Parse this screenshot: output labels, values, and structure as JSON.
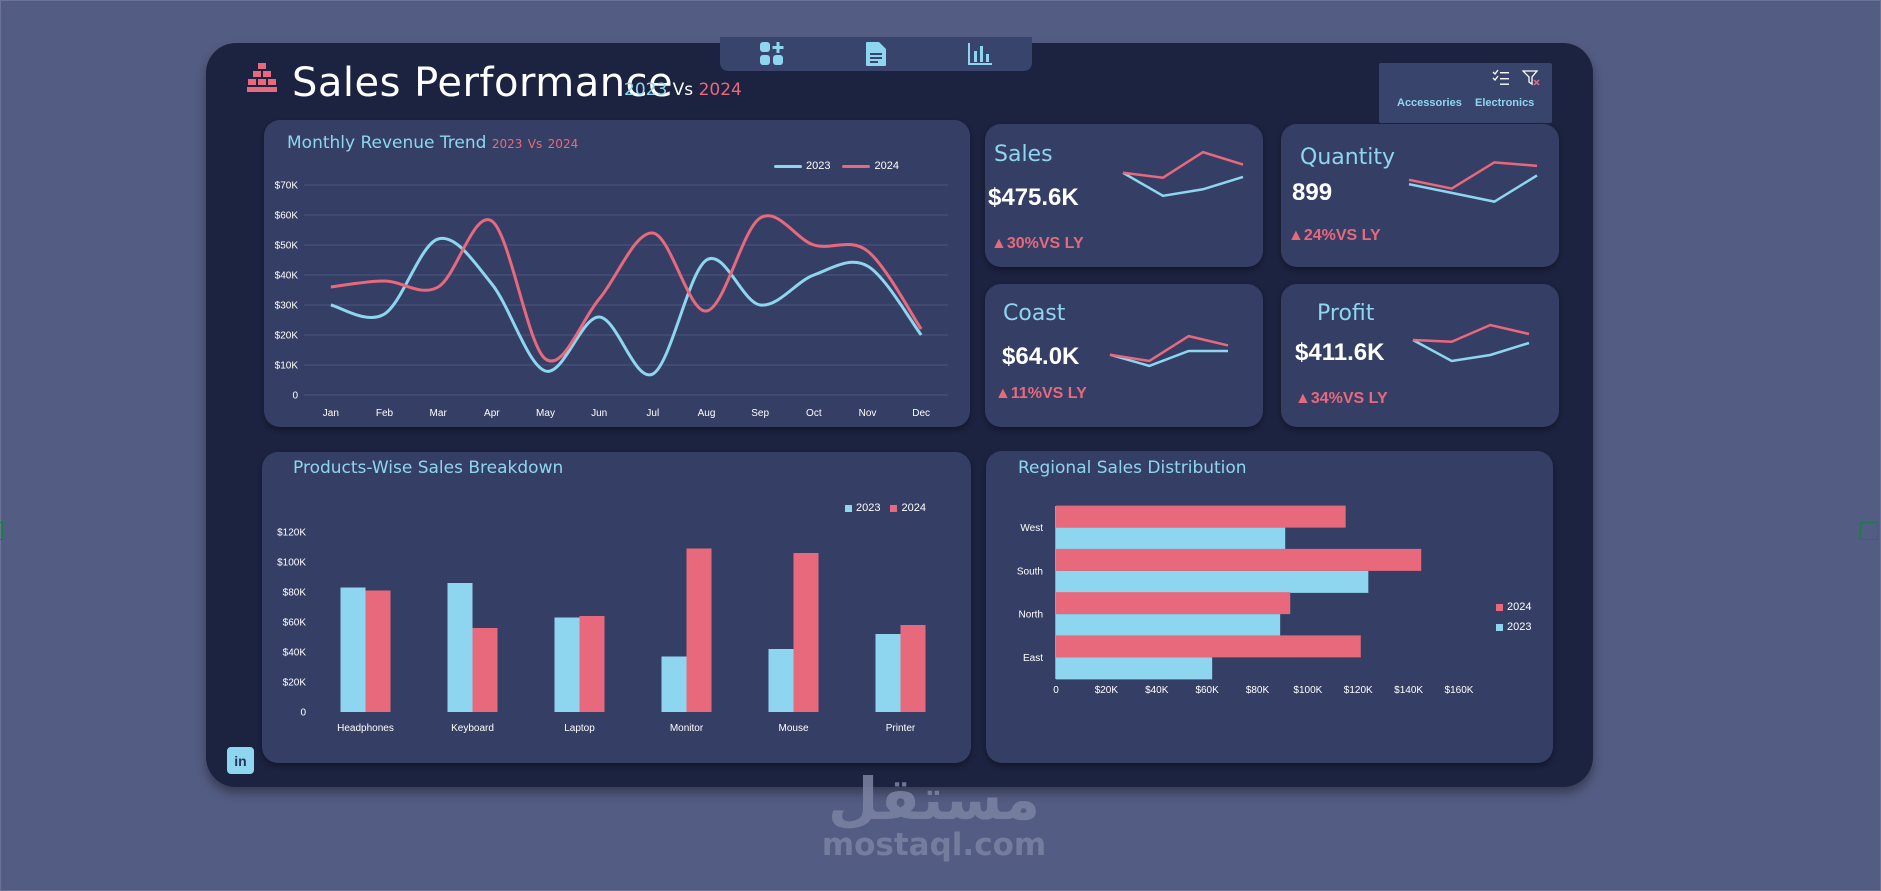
{
  "header": {
    "title": "Sales Performance",
    "subtitle_year_a": "2023",
    "subtitle_vs": "Vs",
    "subtitle_year_b": "2024"
  },
  "nav": {
    "icons": [
      "dashboard-add-icon",
      "document-icon",
      "bar-chart-icon"
    ]
  },
  "slicer": {
    "icons": [
      "multi-select-icon",
      "clear-filter-icon"
    ],
    "items": [
      "Accessories",
      "Electronics"
    ]
  },
  "colors": {
    "y2023": "#8ed6f0",
    "y2024": "#e8697c",
    "card": "#353f65",
    "panel": "#1c2340"
  },
  "revenue_card": {
    "title": "Monthly Revenue Trend",
    "sub_a": "2023",
    "sub_vs": "Vs",
    "sub_b": "2024"
  },
  "products_card": {
    "title": "Products-Wise Sales Breakdown"
  },
  "regional_card": {
    "title": "Regional Sales Distribution"
  },
  "kpis": [
    {
      "label": "Sales",
      "value": "$475.6K",
      "change": "▲30%VS LY",
      "spark_2023": [
        5,
        2.2,
        3,
        4.5
      ],
      "spark_2024": [
        5,
        4.4,
        7.5,
        6
      ]
    },
    {
      "label": "Quantity",
      "value": "899",
      "change": "▲24%VS LY",
      "spark_2023": [
        4.5,
        3.5,
        2.5,
        5.5
      ],
      "spark_2024": [
        5,
        4,
        7,
        6.6
      ]
    },
    {
      "label": "Coast",
      "value": "$64.0K",
      "change": "▲11%VS LY",
      "spark_2023": [
        4,
        2.2,
        4.6,
        4.6
      ],
      "spark_2024": [
        4,
        3,
        7,
        5.5
      ]
    },
    {
      "label": "Profit",
      "value": "$411.6K",
      "change": "▲34%VS LY",
      "spark_2023": [
        5.5,
        2,
        3,
        5
      ],
      "spark_2024": [
        5.5,
        5.2,
        8,
        6.5
      ]
    }
  ],
  "chart_data": [
    {
      "type": "line",
      "title": "Monthly Revenue Trend",
      "categories": [
        "Jan",
        "Feb",
        "Mar",
        "Apr",
        "May",
        "Jun",
        "Jul",
        "Aug",
        "Sep",
        "Oct",
        "Nov",
        "Dec"
      ],
      "series": [
        {
          "name": "2023",
          "values": [
            30000,
            27000,
            52000,
            37000,
            8000,
            26000,
            7000,
            45000,
            30000,
            40000,
            43000,
            20000
          ]
        },
        {
          "name": "2024",
          "values": [
            36000,
            38000,
            36000,
            58000,
            12000,
            32000,
            54000,
            28000,
            59000,
            50000,
            48000,
            22000
          ]
        }
      ],
      "y_ticks": [
        "$70K",
        "$60K",
        "$50K",
        "$40K",
        "$30K",
        "$20K",
        "$10K",
        "0"
      ],
      "ylim": [
        0,
        70000
      ],
      "legend": "top-right",
      "grid": true
    },
    {
      "type": "bar",
      "title": "Products-Wise Sales Breakdown",
      "categories": [
        "Headphones",
        "Keyboard",
        "Laptop",
        "Monitor",
        "Mouse",
        "Printer"
      ],
      "series": [
        {
          "name": "2023",
          "values": [
            83000,
            86000,
            63000,
            37000,
            42000,
            52000
          ]
        },
        {
          "name": "2024",
          "values": [
            81000,
            56000,
            64000,
            109000,
            106000,
            58000
          ]
        }
      ],
      "y_ticks": [
        "$120K",
        "$100K",
        "$80K",
        "$60K",
        "$40K",
        "$20K",
        "0"
      ],
      "ylim": [
        0,
        120000
      ],
      "legend": "top-right",
      "grid": false
    },
    {
      "type": "bar",
      "orientation": "horizontal",
      "title": "Regional Sales Distribution",
      "categories": [
        "West",
        "South",
        "North",
        "East"
      ],
      "series": [
        {
          "name": "2024",
          "values": [
            115000,
            145000,
            93000,
            121000
          ]
        },
        {
          "name": "2023",
          "values": [
            91000,
            124000,
            89000,
            62000
          ]
        }
      ],
      "x_ticks": [
        "0",
        "$20K",
        "$40K",
        "$60K",
        "$80K",
        "$100K",
        "$120K",
        "$140K",
        "$160K"
      ],
      "xlim": [
        0,
        160000
      ],
      "legend": "right",
      "grid": false
    }
  ],
  "watermark": {
    "arabic": "مستقل",
    "latin": "mostaql.com"
  },
  "footer": {
    "linkedin_label": "in"
  }
}
